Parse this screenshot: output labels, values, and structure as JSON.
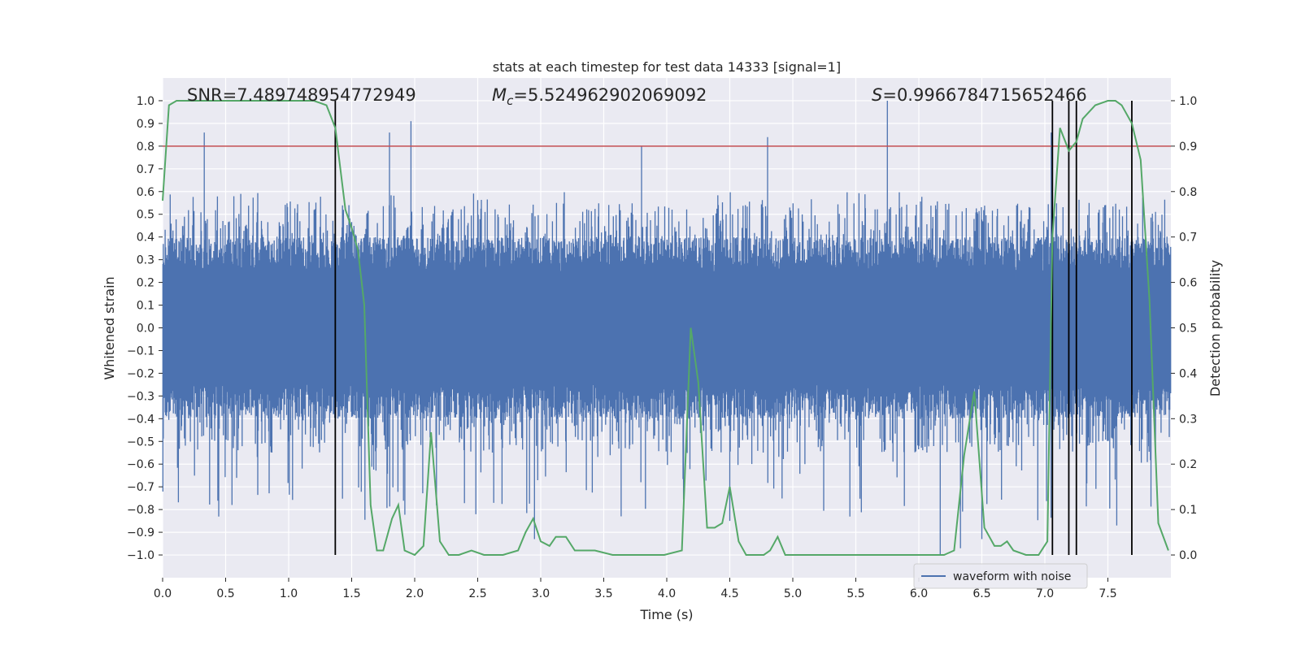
{
  "chart_data": {
    "type": "line",
    "title": "stats at each timestep for test data 14333 [signal=1]",
    "xlabel": "Time (s)",
    "ylabel": "Whitened strain",
    "y2label": "Detection probability",
    "xlim": [
      0.0,
      8.0
    ],
    "ylim": [
      -1.1,
      1.1
    ],
    "y2lim": [
      -0.05,
      1.05
    ],
    "x_ticks": [
      0.0,
      0.5,
      1.0,
      1.5,
      2.0,
      2.5,
      3.0,
      3.5,
      4.0,
      4.5,
      5.0,
      5.5,
      6.0,
      6.5,
      7.0,
      7.5
    ],
    "y_ticks": [
      -1.0,
      -0.9,
      -0.8,
      -0.7,
      -0.6,
      -0.5,
      -0.4,
      -0.3,
      -0.2,
      -0.1,
      0.0,
      0.1,
      0.2,
      0.3,
      0.4,
      0.5,
      0.6,
      0.7,
      0.8,
      0.9,
      1.0
    ],
    "y2_ticks": [
      0.0,
      0.1,
      0.2,
      0.3,
      0.4,
      0.5,
      0.6,
      0.7,
      0.8,
      0.9,
      1.0
    ],
    "grid": true,
    "legend_position": "lower-right",
    "annotations": [
      {
        "text": "SNR=7.489748954772949",
        "x": 0.2,
        "y": 1.03
      },
      {
        "text": "M",
        "sub": "c",
        "rest": "=5.524962902069092",
        "x": 2.6,
        "y": 1.03
      },
      {
        "text": "S",
        "rest": "=0.9966784715652466",
        "x": 5.6,
        "y": 1.03
      }
    ],
    "threshold": {
      "y2": 0.9,
      "color": "#c44e52"
    },
    "vertical_lines": [
      1.37,
      7.06,
      7.19,
      7.25,
      7.69
    ],
    "waveform": {
      "name": "waveform with noise",
      "color": "#4c72b0",
      "envelope_pos": 0.4,
      "envelope_neg": -0.4,
      "peak_max": 1.0,
      "peak_min": -1.0
    },
    "series": [
      {
        "name": "Detection probability",
        "color": "#55a868",
        "axis": "y2",
        "x": [
          0.0,
          0.05,
          0.11,
          0.2,
          0.3,
          0.5,
          1.0,
          1.2,
          1.3,
          1.37,
          1.45,
          1.5,
          1.55,
          1.6,
          1.65,
          1.7,
          1.75,
          1.82,
          1.87,
          1.92,
          2.0,
          2.07,
          2.13,
          2.2,
          2.27,
          2.35,
          2.45,
          2.55,
          2.7,
          2.82,
          2.88,
          2.94,
          3.0,
          3.07,
          3.12,
          3.2,
          3.27,
          3.33,
          3.43,
          3.57,
          3.75,
          3.85,
          3.98,
          4.12,
          4.19,
          4.25,
          4.32,
          4.38,
          4.44,
          4.5,
          4.57,
          4.63,
          4.7,
          4.77,
          4.82,
          4.88,
          4.94,
          5.0,
          5.2,
          5.5,
          6.0,
          6.2,
          6.28,
          6.36,
          6.44,
          6.52,
          6.6,
          6.65,
          6.7,
          6.75,
          6.85,
          6.95,
          7.02,
          7.06,
          7.12,
          7.19,
          7.25,
          7.3,
          7.4,
          7.5,
          7.56,
          7.61,
          7.69,
          7.76,
          7.83,
          7.9,
          7.98
        ],
        "values": [
          0.78,
          0.99,
          1.0,
          1.0,
          1.0,
          1.0,
          1.0,
          1.0,
          0.99,
          0.94,
          0.76,
          0.72,
          0.67,
          0.55,
          0.11,
          0.01,
          0.01,
          0.08,
          0.11,
          0.01,
          0.0,
          0.02,
          0.27,
          0.03,
          0.0,
          0.0,
          0.01,
          0.0,
          0.0,
          0.01,
          0.05,
          0.08,
          0.03,
          0.02,
          0.04,
          0.04,
          0.01,
          0.01,
          0.01,
          0.0,
          0.0,
          0.0,
          0.0,
          0.01,
          0.5,
          0.38,
          0.06,
          0.06,
          0.07,
          0.15,
          0.03,
          0.0,
          0.0,
          0.0,
          0.01,
          0.04,
          0.0,
          0.0,
          0.0,
          0.0,
          0.0,
          0.0,
          0.01,
          0.22,
          0.36,
          0.06,
          0.02,
          0.02,
          0.03,
          0.01,
          0.0,
          0.0,
          0.03,
          0.7,
          0.94,
          0.89,
          0.91,
          0.96,
          0.99,
          1.0,
          1.0,
          0.99,
          0.95,
          0.87,
          0.56,
          0.07,
          0.01
        ]
      }
    ]
  }
}
